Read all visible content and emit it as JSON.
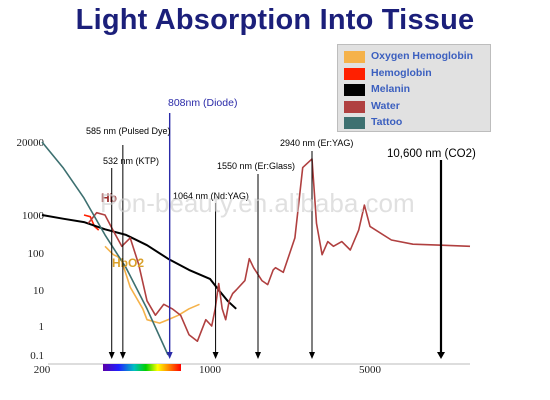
{
  "title": "Light Absorption Into Tissue",
  "colors": {
    "title": "#1b1f7a",
    "legend_text": "#3b5fbf",
    "oxy_hemoglobin": "#f5b24a",
    "hemoglobin": "#ff2000",
    "melanin": "#000000",
    "water": "#b04040",
    "tattoo": "#3d7070",
    "diode_line": "#2a2aa8"
  },
  "watermark": "Pon-beauty.en.alibaba.com",
  "chart_data": {
    "type": "line",
    "title": "Light Absorption Into Tissue",
    "xlabel": "",
    "ylabel": "",
    "x_ticks": [
      "200",
      "1000",
      "5000"
    ],
    "y_ticks": [
      "20000",
      "1000",
      "100",
      "10",
      "1",
      "0.1"
    ],
    "legend_position": "top-right",
    "series": [
      {
        "name": "Oxygen Hemoglobin",
        "color_key": "oxy_hemoglobin",
        "points": [
          [
            500,
            150
          ],
          [
            540,
            90
          ],
          [
            560,
            80
          ],
          [
            580,
            60
          ],
          [
            620,
            12
          ],
          [
            680,
            3
          ],
          [
            700,
            1.5
          ],
          [
            760,
            1.2
          ],
          [
            800,
            1.5
          ],
          [
            850,
            2
          ],
          [
            900,
            3
          ],
          [
            950,
            4
          ]
        ]
      },
      {
        "name": "Hemoglobin",
        "color_key": "hemoglobin",
        "points": [
          [
            400,
            1000
          ],
          [
            430,
            900
          ],
          [
            450,
            500
          ],
          [
            470,
            400
          ]
        ]
      },
      {
        "name": "Melanin",
        "color_key": "melanin",
        "points": [
          [
            200,
            1000
          ],
          [
            300,
            800
          ],
          [
            400,
            650
          ],
          [
            500,
            420
          ],
          [
            600,
            300
          ],
          [
            700,
            160
          ],
          [
            800,
            70
          ],
          [
            900,
            35
          ],
          [
            1000,
            20
          ],
          [
            1100,
            10
          ],
          [
            1200,
            5
          ],
          [
            1300,
            3
          ]
        ]
      },
      {
        "name": "Water",
        "color_key": "water",
        "points": [
          [
            420,
            600
          ],
          [
            460,
            1100
          ],
          [
            500,
            1000
          ],
          [
            540,
            380
          ],
          [
            580,
            150
          ],
          [
            620,
            250
          ],
          [
            660,
            50
          ],
          [
            700,
            5
          ],
          [
            740,
            2
          ],
          [
            780,
            4
          ],
          [
            820,
            3
          ],
          [
            860,
            2
          ],
          [
            900,
            0.5
          ],
          [
            940,
            0.3
          ],
          [
            980,
            1.5
          ],
          [
            1020,
            1
          ],
          [
            1060,
            3
          ],
          [
            1100,
            15
          ],
          [
            1140,
            3
          ],
          [
            1180,
            1.5
          ],
          [
            1220,
            5
          ],
          [
            1260,
            8
          ],
          [
            1300,
            10
          ],
          [
            1400,
            18
          ],
          [
            1450,
            70
          ],
          [
            1500,
            40
          ],
          [
            1650,
            18
          ],
          [
            1800,
            14
          ],
          [
            1940,
            35
          ],
          [
            2000,
            40
          ],
          [
            2200,
            30
          ],
          [
            2500,
            250
          ],
          [
            2700,
            7000
          ],
          [
            2940,
            10000
          ],
          [
            3100,
            600
          ],
          [
            3300,
            90
          ],
          [
            3500,
            200
          ],
          [
            3700,
            150
          ],
          [
            4000,
            200
          ],
          [
            4300,
            120
          ],
          [
            4600,
            400
          ],
          [
            4800,
            1500
          ],
          [
            5000,
            500
          ],
          [
            5300,
            220
          ],
          [
            5600,
            170
          ],
          [
            6000,
            160
          ],
          [
            6400,
            150
          ]
        ]
      },
      {
        "name": "Tattoo",
        "color_key": "tattoo",
        "points": [
          [
            200,
            20000
          ],
          [
            300,
            7000
          ],
          [
            400,
            2000
          ],
          [
            500,
            300
          ],
          [
            600,
            40
          ],
          [
            700,
            3
          ],
          [
            800,
            0.1
          ]
        ]
      }
    ],
    "markers": [
      {
        "label": "808nm (Diode)",
        "x": 808,
        "color_key": "diode_line"
      },
      {
        "label": "585 nm (Pulsed Dye)",
        "x": 585
      },
      {
        "label": "532 nm (KTP)",
        "x": 532
      },
      {
        "label": "1064 nm (Nd:YAG)",
        "x": 1064
      },
      {
        "label": "1550 nm (Er:Glass)",
        "x": 1550
      },
      {
        "label": "2940 nm (Er:YAG)",
        "x": 2940
      },
      {
        "label": "10,600 nm (CO2)",
        "x": 10600
      }
    ],
    "curve_labels": [
      {
        "text": "Hb",
        "series": "Hemoglobin",
        "color": "#9b2a2a"
      },
      {
        "text": "HbO2",
        "series": "Oxygen Hemoglobin",
        "color": "#d9a02a"
      }
    ]
  }
}
